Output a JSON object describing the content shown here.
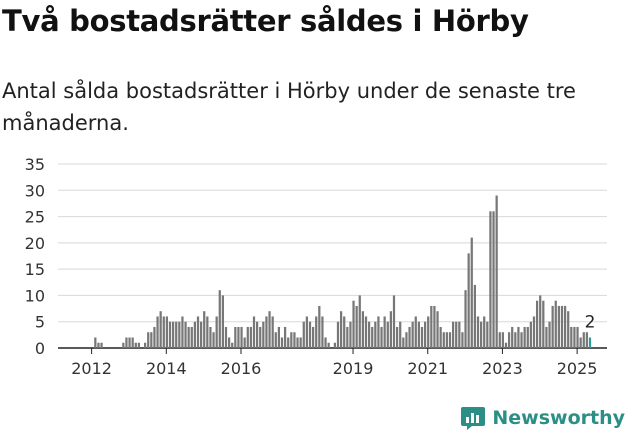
{
  "title": "Två bostadsrätter såldes i Hörby",
  "subtitle": "Antal sålda bostadsrätter i Hörby under de senaste tre månaderna.",
  "brand": {
    "name": "Newsworthy",
    "icon": "newsworthy-logo-icon",
    "color": "#2b8f86"
  },
  "chart_data": {
    "type": "bar",
    "title": "",
    "xlabel": "",
    "ylabel": "",
    "ylim": [
      0,
      35
    ],
    "yticks": [
      0,
      5,
      10,
      15,
      20,
      25,
      30,
      35
    ],
    "xticks": [
      {
        "label": "2012",
        "x": 2012
      },
      {
        "label": "2014",
        "x": 2014
      },
      {
        "label": "2016",
        "x": 2016
      },
      {
        "label": "2019",
        "x": 2019
      },
      {
        "label": "2021",
        "x": 2021
      },
      {
        "label": "2023",
        "x": 2023
      },
      {
        "label": "2025",
        "x": 2025
      }
    ],
    "x_start": 2011.1,
    "x_step": 0.0833,
    "values": [
      0,
      0,
      0,
      0,
      0,
      0,
      0,
      0,
      0,
      0,
      0,
      0,
      2,
      1,
      1,
      0,
      0,
      0,
      0,
      0,
      0,
      1,
      2,
      2,
      2,
      1,
      1,
      0,
      1,
      3,
      3,
      4,
      6,
      7,
      6,
      6,
      5,
      5,
      5,
      5,
      6,
      5,
      4,
      4,
      5,
      6,
      5,
      7,
      6,
      4,
      3,
      6,
      11,
      10,
      4,
      2,
      1,
      4,
      4,
      4,
      2,
      4,
      4,
      6,
      5,
      4,
      5,
      6,
      7,
      6,
      3,
      4,
      2,
      4,
      2,
      3,
      3,
      2,
      2,
      5,
      6,
      5,
      4,
      6,
      8,
      6,
      2,
      1,
      0,
      1,
      5,
      7,
      6,
      4,
      5,
      9,
      8,
      10,
      7,
      6,
      5,
      4,
      5,
      6,
      4,
      6,
      5,
      7,
      10,
      4,
      5,
      2,
      3,
      4,
      5,
      6,
      5,
      4,
      5,
      6,
      8,
      8,
      7,
      4,
      3,
      3,
      3,
      5,
      5,
      5,
      3,
      11,
      18,
      21,
      12,
      6,
      5,
      6,
      5,
      26,
      26,
      29,
      3,
      3,
      1,
      3,
      4,
      3,
      4,
      3,
      4,
      4,
      5,
      6,
      9,
      10,
      9,
      4,
      5,
      8,
      9,
      8,
      8,
      8,
      7,
      4,
      4,
      4,
      2,
      3,
      3,
      2
    ],
    "grid": true,
    "bar_color": "#777777",
    "highlight_color": "#2a9d96",
    "highlight_label": "2"
  }
}
